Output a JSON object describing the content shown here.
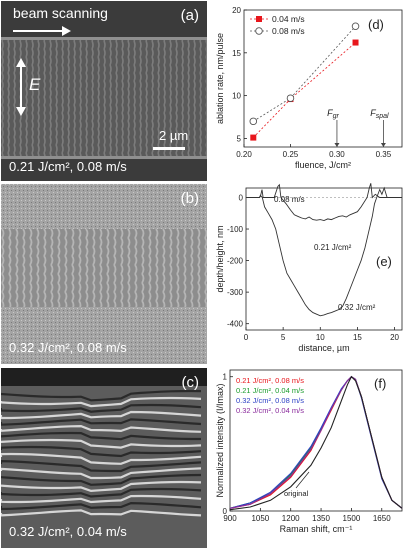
{
  "panels": {
    "a": {
      "letter": "(a)",
      "header": "beam scanning",
      "field_label": "E",
      "scalebar": "2 µm",
      "caption": "0.21 J/cm², 0.08 m/s"
    },
    "b": {
      "letter": "(b)",
      "caption": "0.32 J/cm², 0.08 m/s"
    },
    "c": {
      "letter": "(c)",
      "caption": "0.32 J/cm², 0.04 m/s"
    }
  },
  "chart_data": [
    {
      "panel": "(d)",
      "type": "scatter",
      "xlabel": "fluence, J/cm²",
      "ylabel": "ablation rate, nm/pulse",
      "xlim": [
        0.2,
        0.37
      ],
      "ylim": [
        4,
        20
      ],
      "xticks": [
        "0.20",
        "0.25",
        "0.30",
        "0.35"
      ],
      "yticks": [
        "5",
        "10",
        "15",
        "20"
      ],
      "legend_position": "top-left",
      "series": [
        {
          "name": "0.04 m/s",
          "marker": "filled-square",
          "color": "#e8161c",
          "x": [
            0.21,
            0.25,
            0.32
          ],
          "y": [
            5.1,
            9.6,
            16.2
          ]
        },
        {
          "name": "0.08 m/s",
          "marker": "open-circle",
          "color": "#555555",
          "x": [
            0.21,
            0.25,
            0.32
          ],
          "y": [
            7.0,
            9.7,
            18.1
          ]
        }
      ],
      "annotations": [
        {
          "label": "F",
          "sub": "gr",
          "x": 0.3
        },
        {
          "label": "F",
          "sub": "spal",
          "x": 0.35
        }
      ]
    },
    {
      "panel": "(e)",
      "type": "line",
      "xlabel": "distance, µm",
      "ylabel": "depth/height, nm",
      "xlim": [
        0,
        21
      ],
      "ylim": [
        -420,
        30
      ],
      "xticks": [
        "0",
        "5",
        "10",
        "15",
        "20"
      ],
      "yticks": [
        "0",
        "-100",
        "-200",
        "-300",
        "-400"
      ],
      "series": [
        {
          "label": "0.08 m/s",
          "x": [
            0,
            1.8,
            2,
            2.15,
            2.3,
            3.8,
            4.3,
            4.5,
            4.7,
            5.4,
            6,
            6.5,
            7,
            7.5,
            8,
            8.5,
            9,
            9.5,
            10,
            10.5,
            11,
            11.5,
            12,
            12.5,
            13,
            13.5,
            14,
            15,
            15.5,
            16.3,
            16.6,
            16.8,
            17,
            17.4,
            18,
            21
          ],
          "y": [
            0,
            0,
            10,
            25,
            0,
            0,
            35,
            40,
            0,
            -20,
            -40,
            -55,
            -60,
            -65,
            -68,
            -62,
            -70,
            -72,
            -70,
            -73,
            -68,
            -70,
            -65,
            -60,
            -58,
            -62,
            -55,
            -45,
            -30,
            0,
            30,
            45,
            0,
            10,
            0,
            0
          ]
        },
        {
          "label": "0.32 J/cm²",
          "x": [
            0,
            1.8,
            2,
            2.2,
            2.5,
            3,
            3.5,
            4,
            4.5,
            5,
            5.5,
            6,
            6.5,
            7,
            7.5,
            8,
            8.5,
            9,
            9.5,
            10,
            10.5,
            11,
            11.5,
            12,
            12.5,
            13,
            13.5,
            14,
            14.5,
            15,
            15.5,
            16,
            16.5,
            17,
            17.3,
            17.6,
            18,
            18.3,
            18.6,
            19,
            21
          ],
          "y": [
            0,
            0,
            5,
            0,
            -30,
            -50,
            -70,
            -100,
            -150,
            -200,
            -240,
            -260,
            -280,
            -300,
            -320,
            -340,
            -355,
            -365,
            -370,
            -375,
            -372,
            -368,
            -365,
            -360,
            -355,
            -345,
            -320,
            -290,
            -260,
            -230,
            -200,
            -160,
            -110,
            -60,
            -20,
            0,
            25,
            10,
            30,
            0,
            0
          ]
        }
      ],
      "annotations": [
        "0.08 m/s",
        "0.21 J/cm²",
        "0.32 J/cm²",
        "(e)"
      ]
    },
    {
      "panel": "(f)",
      "type": "line",
      "xlabel": "Raman shift, cm⁻¹",
      "ylabel": "Normalized intensity (I/Imax)",
      "xlim": [
        900,
        1750
      ],
      "ylim": [
        0,
        1.05
      ],
      "xticks": [
        "900",
        "1050",
        "1200",
        "1350",
        "1500",
        "1650"
      ],
      "yticks": [
        "0",
        "1"
      ],
      "legend_position": "top-left",
      "series": [
        {
          "name": "0.21 J/cm², 0.08 m/s",
          "color": "#e8161c",
          "x": [
            900,
            1000,
            1100,
            1200,
            1300,
            1350,
            1400,
            1450,
            1480,
            1500,
            1520,
            1550,
            1600,
            1650,
            1700,
            1750
          ],
          "y": [
            0.02,
            0.05,
            0.12,
            0.25,
            0.45,
            0.6,
            0.75,
            0.9,
            0.97,
            1.0,
            0.98,
            0.85,
            0.55,
            0.25,
            0.08,
            0.02
          ]
        },
        {
          "name": "0.21 J/cm², 0.04 m/s",
          "color": "#1a9c2c",
          "x": [
            900,
            1000,
            1100,
            1200,
            1300,
            1350,
            1400,
            1450,
            1480,
            1500,
            1520,
            1550,
            1600,
            1650,
            1700,
            1750
          ],
          "y": [
            0.02,
            0.06,
            0.13,
            0.27,
            0.47,
            0.61,
            0.76,
            0.9,
            0.97,
            1.0,
            0.98,
            0.85,
            0.55,
            0.25,
            0.08,
            0.02
          ]
        },
        {
          "name": "0.32 J/cm², 0.08 m/s",
          "color": "#2b3fc4",
          "x": [
            900,
            1000,
            1100,
            1200,
            1300,
            1350,
            1400,
            1450,
            1480,
            1500,
            1520,
            1550,
            1600,
            1650,
            1700,
            1750
          ],
          "y": [
            0.02,
            0.06,
            0.14,
            0.28,
            0.48,
            0.62,
            0.77,
            0.91,
            0.97,
            1.0,
            0.98,
            0.84,
            0.54,
            0.24,
            0.08,
            0.02
          ]
        },
        {
          "name": "0.32 J/cm², 0.04 m/s",
          "color": "#8a2a9c",
          "x": [
            900,
            1000,
            1100,
            1200,
            1300,
            1350,
            1400,
            1450,
            1480,
            1500,
            1520,
            1550,
            1600,
            1650,
            1700,
            1750
          ],
          "y": [
            0.02,
            0.05,
            0.13,
            0.26,
            0.46,
            0.6,
            0.76,
            0.9,
            0.97,
            1.0,
            0.98,
            0.85,
            0.55,
            0.25,
            0.08,
            0.02
          ]
        },
        {
          "name": "original",
          "color": "#222222",
          "x": [
            900,
            1000,
            1100,
            1200,
            1300,
            1350,
            1400,
            1450,
            1480,
            1500,
            1520,
            1550,
            1600,
            1650,
            1700,
            1750
          ],
          "y": [
            0.01,
            0.03,
            0.08,
            0.18,
            0.34,
            0.47,
            0.62,
            0.82,
            0.94,
            1.0,
            0.97,
            0.85,
            0.55,
            0.25,
            0.08,
            0.02
          ]
        }
      ],
      "annotations": [
        "original",
        "(f)"
      ]
    }
  ]
}
